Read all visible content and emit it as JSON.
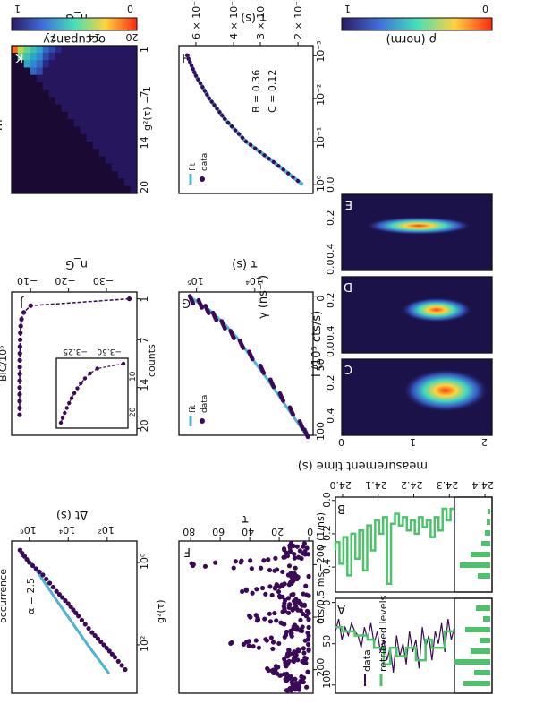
{
  "colors": {
    "data": "#3b0a57",
    "fit": "#4fb3d3",
    "levels": "#4cc26a",
    "dark": "#1a0a33",
    "grey": "#111111"
  },
  "icons": [
    "colormap-gradient-rho",
    "colormap-gradient-occupancy"
  ],
  "chart_data": [
    {
      "panel": "A",
      "type": "line",
      "ylabel": "cts/0.5 ms",
      "xlabel": "",
      "xlim": [
        23.98,
        24.42
      ],
      "ylim": [
        -5,
        110
      ],
      "yticks": [
        "0",
        "50",
        "100"
      ],
      "legend": [
        "data",
        "retrieved levels"
      ],
      "series": [
        {
          "name": "data",
          "values": [
            30,
            45,
            20,
            60,
            25,
            50,
            35,
            70,
            40,
            55,
            30,
            80,
            45,
            60,
            35,
            75,
            50,
            65,
            40,
            85,
            55,
            70,
            45,
            60,
            35,
            50,
            25,
            45,
            30,
            55,
            40,
            35,
            25,
            40,
            30,
            45,
            20,
            35
          ]
        },
        {
          "name": "retrieved levels",
          "values": [
            35,
            35,
            35,
            55,
            55,
            55,
            55,
            45,
            45,
            70,
            70,
            70,
            55,
            55,
            55,
            65,
            65,
            65,
            55,
            55,
            75,
            75,
            55,
            55,
            55,
            45,
            45,
            40,
            40,
            40,
            40,
            35,
            35,
            35,
            35,
            30,
            30,
            30
          ]
        }
      ]
    },
    {
      "panel": "B",
      "type": "line",
      "ylabel": "γ (1/ns)",
      "xlabel": "measurement time (s)",
      "xlim": [
        23.98,
        24.42
      ],
      "xticks": [
        "24.0",
        "24.1",
        "24.2",
        "24.3",
        "24.4"
      ],
      "ylim": [
        -0.02,
        0.55
      ],
      "yticks": [
        "0.0",
        "0.2",
        "0.4"
      ],
      "series": [
        {
          "name": "retrieved levels",
          "values": [
            0.05,
            0.12,
            0.05,
            0.18,
            0.1,
            0.22,
            0.12,
            0.16,
            0.1,
            0.2,
            0.12,
            0.18,
            0.1,
            0.15,
            0.08,
            0.14,
            0.5,
            0.1,
            0.2,
            0.12,
            0.3,
            0.15,
            0.42,
            0.18,
            0.35,
            0.2,
            0.45,
            0.22,
            0.38,
            0.25,
            0.3
          ]
        }
      ]
    },
    {
      "panel": "C",
      "type": "heatmap",
      "xlabel": "",
      "ylabel": "I (10⁵ cts/s)",
      "xticks": [
        "0.0",
        "0.2",
        "0.4"
      ],
      "yticks": [
        "0",
        "1",
        "2"
      ]
    },
    {
      "panel": "D",
      "type": "heatmap",
      "xlabel": "γ (ns⁻¹)",
      "xticks": [
        "0.0",
        "0.2",
        "0.4"
      ]
    },
    {
      "panel": "E",
      "type": "heatmap",
      "xticks": [
        "0.0",
        "0.2",
        "0.4"
      ],
      "colorbar_label": "ρ (norm)",
      "colorbar_ticks": [
        "0",
        "1"
      ]
    },
    {
      "panel": "F",
      "type": "scatter",
      "xlabel": "τ",
      "ylabel": "g²(τ)",
      "xlim": [
        -290,
        290
      ],
      "xticks": [
        "−200",
        "0",
        "200"
      ],
      "ylim": [
        -3,
        88
      ],
      "yticks": [
        "0",
        "20",
        "40",
        "60",
        "80"
      ],
      "peaks_at": [
        -200,
        -100,
        0,
        100,
        200
      ],
      "peak_heights": [
        78,
        42,
        40,
        50,
        28
      ],
      "baseline": 12
    },
    {
      "panel": "G",
      "type": "line",
      "xlabel": "τ (s)",
      "ylabel": "counts",
      "xlim": [
        -3,
        100
      ],
      "xticks": [
        "0",
        "50",
        "100"
      ],
      "yscale": "log",
      "yticks": [
        "10⁴",
        "10⁵"
      ],
      "legend": [
        "fit",
        "data"
      ],
      "series": [
        {
          "name": "data",
          "x": [
            0,
            3,
            7,
            12,
            18,
            25,
            32,
            40,
            50,
            60,
            70,
            80,
            90,
            96
          ],
          "y": [
            130000,
            92000,
            70000,
            52000,
            37000,
            26000,
            18000,
            12500,
            8000,
            5400,
            3700,
            2500,
            1700,
            1400
          ]
        },
        {
          "name": "fit",
          "x": [
            0,
            10,
            20,
            30,
            40,
            50,
            60,
            70,
            80,
            90,
            100
          ],
          "y": [
            135000,
            60000,
            33000,
            20000,
            13500,
            9000,
            6000,
            4100,
            2800,
            1900,
            1300
          ]
        }
      ]
    },
    {
      "panel": "H",
      "type": "line",
      "xlabel": "τ (s)",
      "ylabel": "g²(τ) − 1",
      "xscale": "log",
      "yscale": "log",
      "xticks": [
        "10⁻³",
        "10⁻²",
        "10⁻¹",
        "10⁰"
      ],
      "yticks": [
        "2 × 10⁻¹",
        "3 × 10⁻¹",
        "4 × 10⁻¹",
        "6 × 10⁻¹"
      ],
      "legend": [
        "fit",
        "data"
      ],
      "annotations": [
        "B = 0.36",
        "C = 0.12"
      ],
      "series": [
        {
          "name": "data",
          "x": [
            0.001,
            0.003,
            0.01,
            0.03,
            0.1,
            0.3,
            1
          ],
          "y": [
            0.66,
            0.6,
            0.52,
            0.44,
            0.35,
            0.26,
            0.19
          ]
        },
        {
          "name": "fit",
          "x": [
            0.001,
            0.003,
            0.01,
            0.03,
            0.1,
            0.3,
            1
          ],
          "y": [
            0.66,
            0.6,
            0.52,
            0.44,
            0.35,
            0.26,
            0.19
          ]
        }
      ]
    },
    {
      "panel": "I",
      "type": "scatter",
      "xlabel": "Δt (s)",
      "ylabel": "occurrence",
      "xscale": "log",
      "yscale": "log",
      "xticks": [
        "10²",
        "10⁰"
      ],
      "yticks": [
        "10²",
        "10⁴",
        "10⁶"
      ],
      "annotations": [
        "α = 2.5"
      ],
      "series": [
        {
          "name": "data",
          "x": [
            0.5,
            1,
            2,
            5,
            10,
            20,
            50,
            100,
            200,
            500
          ],
          "y": [
            3000000,
            1000000,
            200000,
            40000,
            10000,
            3000,
            600,
            150,
            40,
            8
          ]
        },
        {
          "name": "fit",
          "x": [
            1,
            10,
            100,
            500
          ],
          "y": [
            800000,
            30000,
            1000,
            80
          ]
        }
      ]
    },
    {
      "panel": "J",
      "type": "line",
      "xlabel": "n_G",
      "ylabel": "BIC/10⁵",
      "xticks": [
        "1",
        "7",
        "14",
        "20"
      ],
      "yticks": [
        "−30",
        "−20",
        "−10"
      ],
      "series": [
        {
          "name": "BIC",
          "x": [
            1,
            2,
            3,
            4,
            5,
            6,
            7,
            8,
            9,
            10,
            11,
            12,
            13,
            14,
            15,
            16,
            17,
            18
          ],
          "y": [
            -36,
            -10,
            -8.2,
            -7.6,
            -7.4,
            -7.3,
            -7.25,
            -7.2,
            -7.18,
            -7.16,
            -7.15,
            -7.14,
            -7.13,
            -7.12,
            -7.12,
            -7.11,
            -7.11,
            -7.1
          ]
        }
      ],
      "inset": {
        "xticks": [
          "10",
          "20"
        ],
        "yticks": [
          "−3.50",
          "−3.25"
        ]
      }
    },
    {
      "panel": "K",
      "type": "heatmap",
      "xlabel": "n_G",
      "ylabel": "m",
      "xticks": [
        "1",
        "7",
        "14",
        "20"
      ],
      "yticks": [
        "7",
        "14",
        "20"
      ],
      "colorbar_label": "occupancy",
      "colorbar_ticks": [
        "0",
        "1"
      ]
    }
  ]
}
